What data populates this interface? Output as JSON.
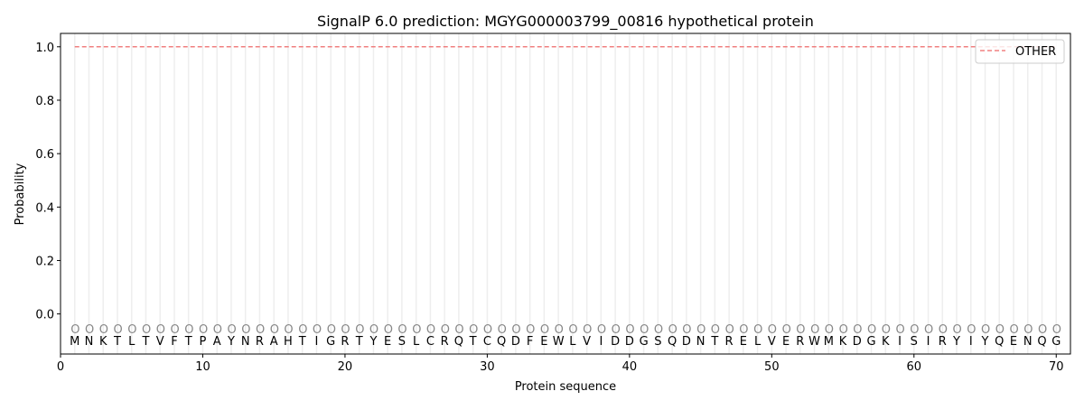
{
  "chart_data": {
    "type": "line",
    "title": "SignalP 6.0 prediction: MGYG000003799_00816 hypothetical protein",
    "xlabel": "Protein sequence",
    "ylabel": "Probability",
    "xlim": [
      0,
      71
    ],
    "ylim": [
      -0.15,
      1.05
    ],
    "xticks": [
      0,
      10,
      20,
      30,
      40,
      50,
      60,
      70
    ],
    "yticks": [
      "0.0",
      "0.2",
      "0.4",
      "0.6",
      "0.8",
      "1.0"
    ],
    "legend_position": "top-right",
    "grid": "vertical lines at each residue",
    "sequence": [
      "M",
      "N",
      "K",
      "T",
      "L",
      "T",
      "V",
      "F",
      "T",
      "P",
      "A",
      "Y",
      "N",
      "R",
      "A",
      "H",
      "T",
      "I",
      "G",
      "R",
      "T",
      "Y",
      "E",
      "S",
      "L",
      "C",
      "R",
      "Q",
      "T",
      "C",
      "Q",
      "D",
      "F",
      "E",
      "W",
      "L",
      "V",
      "I",
      "D",
      "D",
      "G",
      "S",
      "Q",
      "D",
      "N",
      "T",
      "R",
      "E",
      "L",
      "V",
      "E",
      "R",
      "W",
      "M",
      "K",
      "D",
      "G",
      "K",
      "I",
      "S",
      "I",
      "R",
      "Y",
      "I",
      "Y",
      "Q",
      "E",
      "N",
      "Q",
      "G"
    ],
    "predicted_labels": "OOOOOOOOOOOOOOOOOOOOOOOOOOOOOOOOOOOOOOOOOOOOOOOOOOOOOOOOOOOOOOOOOOOOOO",
    "series": [
      {
        "name": "OTHER",
        "color": "#f08080",
        "style": "dashed",
        "x_range": [
          1,
          70
        ],
        "value": 1.0
      }
    ]
  }
}
